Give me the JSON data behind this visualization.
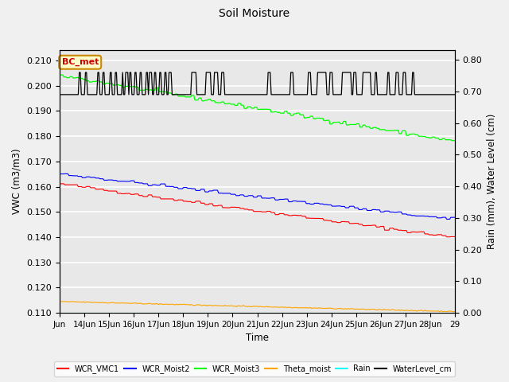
{
  "title": "Soil Moisture",
  "xlabel": "Time",
  "ylabel_left": "VWC (m3/m3)",
  "ylabel_right": "Rain (mm), Water Level (cm)",
  "ylim_left": [
    0.11,
    0.214
  ],
  "ylim_right": [
    0.0,
    0.83
  ],
  "yticks_left": [
    0.11,
    0.12,
    0.13,
    0.14,
    0.15,
    0.16,
    0.17,
    0.18,
    0.19,
    0.2,
    0.21
  ],
  "yticks_right": [
    0.0,
    0.1,
    0.2,
    0.3,
    0.4,
    0.5,
    0.6,
    0.7,
    0.8
  ],
  "annotation_text": "BC_met",
  "annotation_color": "#cc0000",
  "annotation_bg": "#ffffcc",
  "annotation_edge": "#cc8800",
  "legend_entries": [
    "WCR_VMC1",
    "WCR_Moist2",
    "WCR_Moist3",
    "Theta_moist",
    "Rain",
    "WaterLevel_cm"
  ],
  "legend_colors": [
    "red",
    "blue",
    "lime",
    "orange",
    "cyan",
    "black"
  ],
  "bg_color": "#e8e8e8",
  "grid_color": "white",
  "fig_bg": "#f0f0f0",
  "date_labels": [
    "Jun",
    "14Jun",
    "15Jun",
    "16Jun",
    "17Jun",
    "18Jun",
    "19Jun",
    "20Jun",
    "21Jun",
    "22Jun",
    "23Jun",
    "24Jun",
    "25Jun",
    "26Jun",
    "27Jun",
    "28Jun",
    "29"
  ],
  "wl_base": 0.69,
  "wl_high": 0.76,
  "wl_spike_starts": [
    0.8,
    1.05,
    1.55,
    1.75,
    2.05,
    2.25,
    2.55,
    2.7,
    2.85,
    3.05,
    3.25,
    3.5,
    3.65,
    3.85,
    4.05,
    4.25,
    4.45,
    5.35,
    5.95,
    6.25,
    6.55,
    8.45,
    9.35,
    10.05,
    10.45,
    10.95,
    11.45,
    11.9,
    12.25,
    12.75,
    13.25,
    13.6,
    13.9,
    14.25
  ],
  "wl_spike_widths": [
    0.1,
    0.1,
    0.1,
    0.1,
    0.1,
    0.1,
    0.07,
    0.1,
    0.1,
    0.1,
    0.1,
    0.1,
    0.1,
    0.1,
    0.1,
    0.1,
    0.1,
    0.2,
    0.2,
    0.2,
    0.15,
    0.12,
    0.12,
    0.12,
    0.35,
    0.12,
    0.35,
    0.12,
    0.35,
    0.12,
    0.12,
    0.12,
    0.12,
    0.12
  ]
}
